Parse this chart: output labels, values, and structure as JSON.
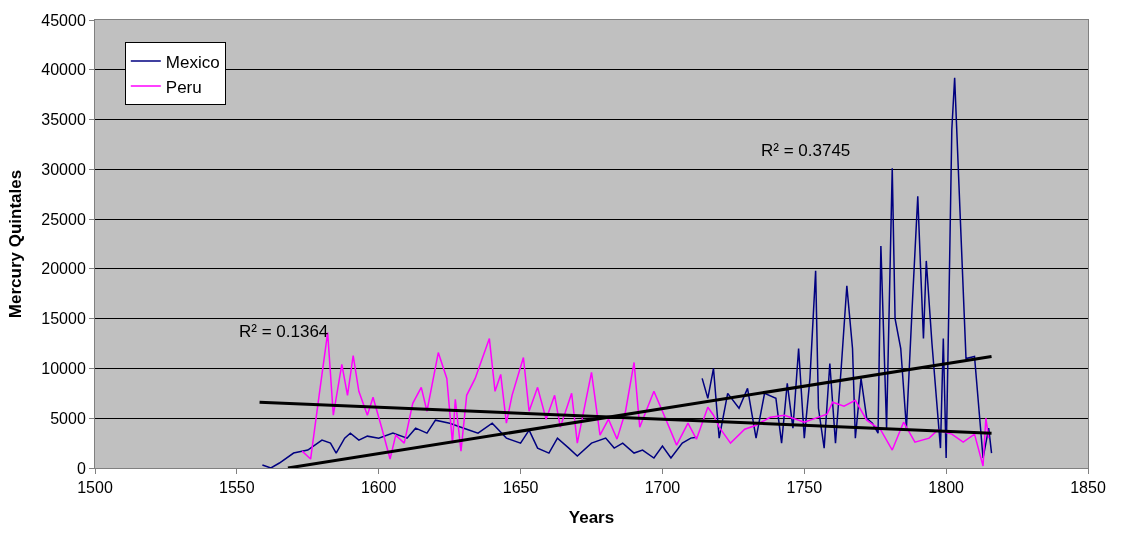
{
  "chart_data": {
    "type": "line",
    "xlabel": "Years",
    "ylabel": "Mercury Quintales",
    "xlim": [
      1500,
      1850
    ],
    "xticks": [
      1500,
      1550,
      1600,
      1650,
      1700,
      1750,
      1800,
      1850
    ],
    "ylim": [
      0,
      45000
    ],
    "yticks": [
      0,
      5000,
      10000,
      15000,
      20000,
      25000,
      30000,
      35000,
      40000,
      45000
    ],
    "grid": "y",
    "legend": "top left",
    "marker": "none",
    "line_style": "solid",
    "series": [
      {
        "name": "Mexico",
        "color": "#000080",
        "x": [
          1559,
          1562,
          1565,
          1570,
          1575,
          1580,
          1583,
          1585,
          1588,
          1590,
          1593,
          1596,
          1600,
          1605,
          1610,
          1613,
          1617,
          1620,
          1625,
          1630,
          1635,
          1640,
          1645,
          1650,
          1653,
          1656,
          1660,
          1663,
          1667,
          1670,
          1675,
          1680,
          1683,
          1686,
          1690,
          1693,
          1697,
          1700,
          1703,
          1707,
          1710,
          1712,
          1713,
          1714,
          1716,
          1718,
          1720,
          1723,
          1727,
          1730,
          1733,
          1736,
          1740,
          1742,
          1744,
          1746,
          1748,
          1750,
          1752,
          1754,
          1755,
          1757,
          1759,
          1761,
          1763,
          1765,
          1767,
          1768,
          1770,
          1772,
          1774,
          1776,
          1777,
          1779,
          1781,
          1782,
          1784,
          1786,
          1788,
          1790,
          1791,
          1792,
          1793,
          1795,
          1798,
          1799,
          1800,
          1801,
          1802,
          1803,
          1805,
          1807,
          1810,
          1813,
          1815,
          1816
        ],
        "values": [
          300,
          0,
          500,
          1500,
          1800,
          2800,
          2500,
          1500,
          3000,
          3500,
          2800,
          3200,
          3000,
          3500,
          3000,
          4000,
          3500,
          4800,
          4500,
          4000,
          3500,
          4500,
          3000,
          2500,
          3800,
          2000,
          1500,
          3000,
          2000,
          1200,
          2500,
          3000,
          2000,
          2500,
          1500,
          1800,
          1000,
          2200,
          1000,
          2500,
          3000,
          3100,
          null,
          9000,
          7000,
          10000,
          3000,
          7500,
          6000,
          8000,
          3000,
          7500,
          7000,
          2500,
          8500,
          4000,
          12000,
          3000,
          9000,
          19800,
          6000,
          2000,
          10500,
          2500,
          10000,
          18300,
          12000,
          3000,
          9000,
          5000,
          4500,
          3500,
          22300,
          4000,
          30100,
          15000,
          12000,
          4000,
          16000,
          27300,
          20000,
          13000,
          20800,
          12500,
          2000,
          13000,
          1000,
          17000,
          34000,
          39200,
          25000,
          11000,
          11200,
          1000,
          4000,
          1500
        ]
      },
      {
        "name": "Peru",
        "color": "#ff00ff",
        "x": [
          1573,
          1576,
          1579,
          1582,
          1584,
          1587,
          1589,
          1591,
          1593,
          1596,
          1598,
          1601,
          1604,
          1606,
          1609,
          1612,
          1615,
          1617,
          1621,
          1624,
          1626,
          1627,
          1629,
          1631,
          1634,
          1636,
          1639,
          1641,
          1643,
          1645,
          1647,
          1651,
          1653,
          1656,
          1659,
          1662,
          1664,
          1668,
          1670,
          1675,
          1678,
          1681,
          1684,
          1687,
          1690,
          1692,
          1697,
          1700,
          1705,
          1709,
          1712,
          1716,
          1718,
          1720,
          1724,
          1729,
          1733,
          1738,
          1743,
          1750,
          1758,
          1760,
          1764,
          1768,
          1772,
          1777,
          1781,
          1785,
          1789,
          1794,
          1797,
          1802,
          1806,
          1810,
          1813,
          1814,
          1815
        ],
        "values": [
          1700,
          900,
          7300,
          13600,
          5300,
          10400,
          7300,
          11300,
          7700,
          5300,
          7100,
          4100,
          900,
          3300,
          2500,
          6500,
          8100,
          5700,
          11600,
          9000,
          2500,
          6900,
          1700,
          7300,
          9000,
          10600,
          13000,
          7700,
          9400,
          4500,
          7300,
          11100,
          5700,
          8100,
          4900,
          7300,
          4100,
          7500,
          2500,
          9600,
          3300,
          4900,
          2900,
          5700,
          10600,
          4100,
          7700,
          5700,
          2300,
          4500,
          2900,
          6100,
          5300,
          4100,
          2500,
          3900,
          4300,
          5100,
          5300,
          4600,
          5400,
          6600,
          6200,
          6800,
          4800,
          3800,
          1800,
          4600,
          2600,
          3000,
          3800,
          3400,
          2600,
          3400,
          200,
          5000,
          3000
        ]
      },
      {
        "type": "line",
        "color": "#000000",
        "x": [
          1558,
          1816
        ],
        "values": [
          6600,
          3500
        ]
      },
      {
        "type": "line",
        "color": "#000000",
        "x": [
          1568,
          1816
        ],
        "values": [
          0,
          11200
        ]
      }
    ],
    "annotations": [
      "R² = 0.1364",
      "R² = 0.3745"
    ]
  }
}
